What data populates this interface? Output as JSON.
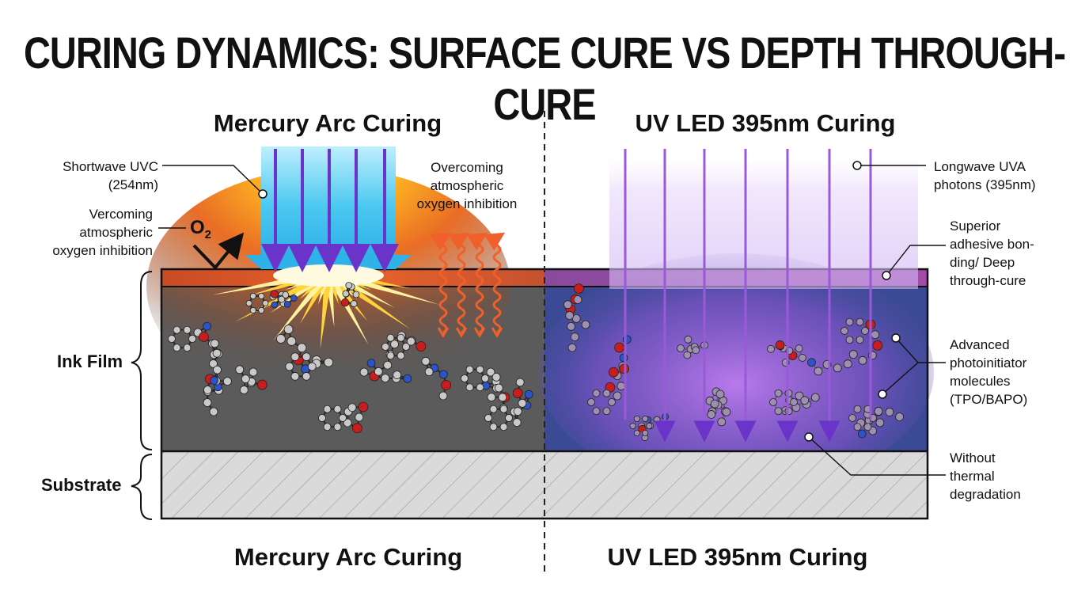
{
  "title": "CURING DYNAMICS: SURFACE CURE VS DEPTH THROUGH-CURE",
  "left": {
    "heading": "Mercury Arc Curing",
    "footer": "Mercury Arc Curing",
    "label_shortwave": [
      "Shortwave UVC",
      "(254nm)"
    ],
    "label_vercoming": [
      "Vercoming",
      "atmospheric",
      "oxygen inhibition"
    ],
    "label_overcoming": [
      "Overcoming",
      "atmospheric",
      "oxygen inhibition"
    ],
    "o2": "O",
    "o2_sub": "2"
  },
  "right": {
    "heading": "UV LED 395nm Curing",
    "footer": "UV LED 395nm Curing",
    "label_longwave": [
      "Longwave UVA",
      "photons (395nm)"
    ],
    "label_superior": [
      "Superior",
      "adhesive bon-",
      "ding/ Deep",
      "through-cure"
    ],
    "label_advanced": [
      "Advanced",
      "photoinitiator",
      "molecules",
      "(TPO/BAPO)"
    ],
    "label_without": [
      "Without",
      "thermal",
      "degradation"
    ]
  },
  "layers": {
    "ink_film": "Ink Film",
    "substrate": "Substrate"
  },
  "colors": {
    "uvc_blue": "#3cc3ee",
    "arrow_purple": "#6a33c9",
    "surface_orange": "#d5552a",
    "ink_gray": "#5b5b5b",
    "led_blue": "#3a4a94",
    "led_violet": "#9a5ad8",
    "substrate_gray": "#d8d8d8"
  }
}
